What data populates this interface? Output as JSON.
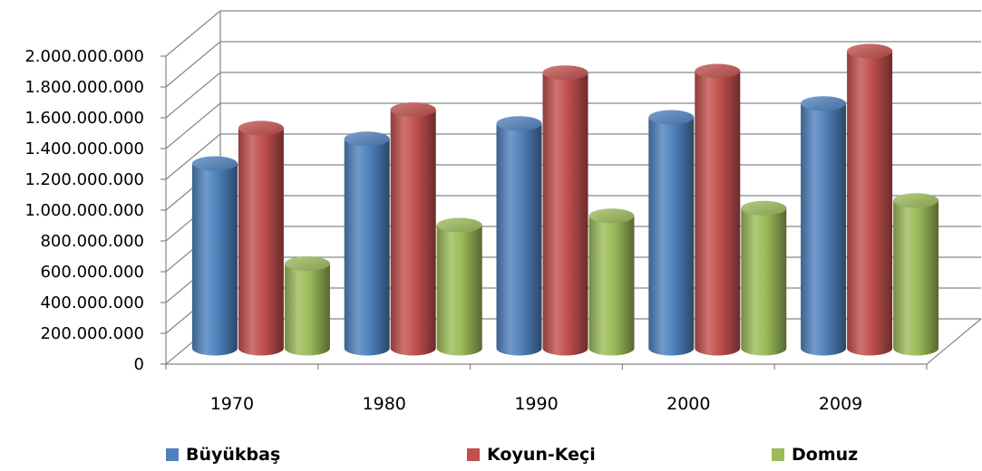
{
  "chart_data": {
    "type": "bar",
    "categories": [
      "1970",
      "1980",
      "1990",
      "2000",
      "2009"
    ],
    "series": [
      {
        "name": "Büyükbaş",
        "values": [
          1200000000,
          1360000000,
          1460000000,
          1500000000,
          1590000000
        ]
      },
      {
        "name": "Koyun-Keçi",
        "values": [
          1430000000,
          1550000000,
          1790000000,
          1800000000,
          1930000000
        ]
      },
      {
        "name": "Domuz",
        "values": [
          550000000,
          800000000,
          860000000,
          910000000,
          960000000
        ]
      }
    ],
    "yticks": [
      "0",
      "200.000.000",
      "400.000.000",
      "600.000.000",
      "800.000.000",
      "1.000.000.000",
      "1.200.000.000",
      "1.400.000.000",
      "1.600.000.000",
      "1.800.000.000",
      "2.000.000.000"
    ],
    "ylim": [
      0,
      2000000000
    ],
    "grid": true,
    "legend_position": "bottom",
    "colors": {
      "Büyükbaş": "#4f81bd",
      "Koyun-Keçi": "#c0504d",
      "Domuz": "#9bbb59"
    }
  }
}
